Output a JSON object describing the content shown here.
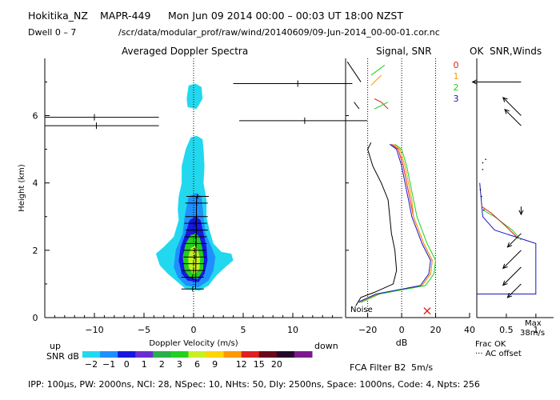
{
  "header": {
    "station": "Hokitika_NZ",
    "radar": "MAPR-449",
    "datetime": "Mon Jun 09 2014 00:00 – 00:03 UT 18:00 NZST",
    "dwell": "Dwell  0 –  7",
    "path": "/scr/data/modular_prof/raw/wind/20140609/09-Jun-2014_00-00-01.cor.nc"
  },
  "panels": {
    "spectra_title": "Averaged Doppler Spectra",
    "signal_title": "Signal, SNR",
    "ok_title": "OK",
    "snrwinds_title": "SNR,Winds"
  },
  "labels": {
    "up": "up",
    "down": "down",
    "snr_db": "SNR dB",
    "noise": "Noise",
    "fca": "FCA Filter B2",
    "fca_speed": "5m/s",
    "frac_ok": "Frac OK",
    "ac_offset": "··· AC offset",
    "max": "Max",
    "max_speed": "38m/s"
  },
  "footer": {
    "params": "IPP: 100µs,  PW: 2000ns,  NCI:  28,  NSpec: 10,  NHts: 50,  Dly: 2500ns,  Space: 1000ns,  Code: 4,  Npts: 256"
  },
  "chart_data": [
    {
      "type": "heatmap",
      "title": "Averaged Doppler Spectra",
      "xlabel": "Doppler Velocity (m/s)",
      "ylabel": "Height (km)",
      "xlim": [
        -15,
        15
      ],
      "ylim": [
        0,
        7.7
      ],
      "xticks": [
        -10,
        -5,
        0,
        5,
        10
      ],
      "yticks": [
        0,
        2,
        4,
        6
      ],
      "colorbar": {
        "label": "SNR dB",
        "ticks": [
          "-2",
          "-1",
          "0",
          "1",
          "2",
          "3",
          "6",
          "9",
          "12",
          "15",
          "20"
        ],
        "colors": [
          "#22d8ee",
          "#1e90ff",
          "#1818e0",
          "#6a2fd0",
          "#2ab04a",
          "#22d020",
          "#c8f020",
          "#ffd400",
          "#ff9800",
          "#e02020",
          "#6a0818",
          "#24082c",
          "#7a1a8c"
        ]
      },
      "contours": [
        {
          "level": 0,
          "points": [
            [
              0.6,
              0.8
            ],
            [
              1.5,
              0.95
            ],
            [
              2.3,
              1.25
            ],
            [
              3.2,
              1.5
            ],
            [
              4.0,
              1.7
            ],
            [
              3.8,
              1.9
            ],
            [
              2.8,
              1.95
            ],
            [
              2.0,
              2.2
            ],
            [
              1.6,
              2.6
            ],
            [
              1.3,
              3.0
            ],
            [
              1.3,
              3.5
            ],
            [
              1.0,
              4.0
            ],
            [
              1.1,
              4.5
            ],
            [
              1.0,
              5.0
            ],
            [
              0.9,
              5.3
            ],
            [
              0.3,
              5.4
            ],
            [
              -0.3,
              5.35
            ],
            [
              -0.8,
              5.0
            ],
            [
              -1.2,
              4.5
            ],
            [
              -1.2,
              4.0
            ],
            [
              -1.5,
              3.6
            ],
            [
              -1.6,
              3.2
            ],
            [
              -1.5,
              2.9
            ],
            [
              -2.0,
              2.4
            ],
            [
              -3.0,
              2.1
            ],
            [
              -3.8,
              1.9
            ],
            [
              -3.4,
              1.55
            ],
            [
              -2.6,
              1.3
            ],
            [
              -1.6,
              1.05
            ],
            [
              -0.8,
              0.85
            ]
          ]
        },
        {
          "level": 0,
          "points": [
            [
              0.3,
              6.2
            ],
            [
              0.9,
              6.5
            ],
            [
              0.8,
              6.85
            ],
            [
              0.2,
              6.95
            ],
            [
              -0.5,
              6.9
            ],
            [
              -0.7,
              6.5
            ],
            [
              -0.6,
              6.25
            ]
          ]
        },
        {
          "level": 1,
          "points": [
            [
              0.5,
              0.9
            ],
            [
              1.5,
              1.1
            ],
            [
              2.0,
              1.4
            ],
            [
              2.2,
              1.8
            ],
            [
              1.8,
              2.1
            ],
            [
              1.2,
              2.5
            ],
            [
              1.0,
              3.0
            ],
            [
              0.8,
              3.6
            ],
            [
              0.3,
              3.7
            ],
            [
              -0.5,
              3.6
            ],
            [
              -0.9,
              3.0
            ],
            [
              -1.1,
              2.5
            ],
            [
              -1.8,
              2.0
            ],
            [
              -2.0,
              1.5
            ],
            [
              -1.6,
              1.2
            ],
            [
              -0.8,
              0.95
            ]
          ]
        },
        {
          "level": 2,
          "points": [
            [
              0.5,
              1.05
            ],
            [
              1.1,
              1.3
            ],
            [
              1.4,
              1.7
            ],
            [
              1.3,
              2.1
            ],
            [
              1.0,
              2.5
            ],
            [
              0.7,
              2.9
            ],
            [
              0.2,
              3.0
            ],
            [
              -0.4,
              2.9
            ],
            [
              -0.8,
              2.5
            ],
            [
              -1.3,
              2.1
            ],
            [
              -1.5,
              1.7
            ],
            [
              -1.2,
              1.3
            ],
            [
              -0.6,
              1.1
            ]
          ]
        },
        {
          "level": 3,
          "points": [
            [
              0.4,
              1.15
            ],
            [
              0.95,
              1.4
            ],
            [
              1.05,
              1.75
            ],
            [
              0.85,
              2.1
            ],
            [
              0.6,
              2.4
            ],
            [
              0.2,
              2.5
            ],
            [
              -0.3,
              2.45
            ],
            [
              -0.8,
              2.2
            ],
            [
              -1.1,
              1.8
            ],
            [
              -0.9,
              1.4
            ],
            [
              -0.4,
              1.2
            ]
          ]
        },
        {
          "level": 4,
          "points": [
            [
              0.2,
              1.3
            ],
            [
              0.6,
              1.45
            ],
            [
              0.65,
              1.75
            ],
            [
              0.45,
              2.0
            ],
            [
              0.1,
              2.15
            ],
            [
              -0.3,
              2.05
            ],
            [
              -0.55,
              1.8
            ],
            [
              -0.5,
              1.5
            ],
            [
              -0.2,
              1.35
            ]
          ]
        }
      ],
      "peaks": [
        [
          -0.1,
          0.85
        ],
        [
          -0.1,
          1.2
        ],
        [
          0.0,
          1.4
        ],
        [
          0.0,
          1.6
        ],
        [
          0.1,
          1.8
        ],
        [
          0.1,
          2.0
        ],
        [
          0.2,
          2.2
        ],
        [
          0.2,
          2.4
        ],
        [
          0.3,
          2.6
        ],
        [
          0.2,
          2.8
        ],
        [
          0.3,
          3.0
        ],
        [
          0.3,
          3.4
        ],
        [
          0.4,
          3.6
        ]
      ],
      "wind_bars": [
        {
          "height": 6.95,
          "x_start": 4.0,
          "x_end": 16.0,
          "mark": 10.5
        },
        {
          "height": 5.95,
          "x_start": -15.0,
          "x_end": -3.5,
          "mark": -10.0
        },
        {
          "height": 5.7,
          "x_start": -15.0,
          "x_end": -3.5,
          "mark": -9.8
        },
        {
          "height": 5.85,
          "x_start": 4.6,
          "x_end": 17.5,
          "mark": 11.2
        }
      ]
    },
    {
      "type": "line",
      "title": "Signal, SNR",
      "xlabel": "dB",
      "ylabel": "Height (km)",
      "xlim": [
        -33,
        40
      ],
      "ylim": [
        0,
        7.7
      ],
      "xticks": [
        -20,
        0,
        20,
        40
      ],
      "dotted_x": [
        -20,
        0,
        20
      ],
      "series": [
        {
          "name": "Noise",
          "color": "#000000",
          "points": [
            [
              -27,
              0.35
            ],
            [
              -24,
              0.6
            ],
            [
              -16,
              0.75
            ],
            [
              -5,
              1.0
            ],
            [
              -3,
              1.4
            ],
            [
              -4,
              2.0
            ],
            [
              -6,
              2.5
            ],
            [
              -7,
              3.0
            ],
            [
              -8,
              3.5
            ],
            [
              -12,
              4.0
            ],
            [
              -17,
              4.5
            ],
            [
              -20,
              5.0
            ],
            [
              -18,
              5.2
            ]
          ]
        },
        {
          "name": "0",
          "color": "#e02020",
          "points": [
            [
              -25,
              0.45
            ],
            [
              -14,
              0.7
            ],
            [
              12,
              0.95
            ],
            [
              17,
              1.3
            ],
            [
              18,
              1.7
            ],
            [
              13,
              2.2
            ],
            [
              10,
              2.6
            ],
            [
              7,
              3.0
            ],
            [
              5,
              3.5
            ],
            [
              3,
              4.0
            ],
            [
              1,
              4.5
            ],
            [
              -2,
              5.0
            ],
            [
              -6,
              5.15
            ]
          ]
        },
        {
          "name": "1",
          "color": "#ff9800",
          "points": [
            [
              -25,
              0.45
            ],
            [
              -14,
              0.7
            ],
            [
              12,
              0.95
            ],
            [
              17,
              1.3
            ],
            [
              18,
              1.7
            ],
            [
              13,
              2.2
            ],
            [
              10,
              2.6
            ],
            [
              7,
              3.0
            ],
            [
              6,
              3.5
            ],
            [
              4,
              4.0
            ],
            [
              2,
              4.5
            ],
            [
              -1,
              5.0
            ],
            [
              -5,
              5.15
            ]
          ]
        },
        {
          "name": "2",
          "color": "#20d020",
          "points": [
            [
              -24,
              0.45
            ],
            [
              -13,
              0.7
            ],
            [
              14,
              0.95
            ],
            [
              19,
              1.3
            ],
            [
              20,
              1.7
            ],
            [
              15,
              2.2
            ],
            [
              12,
              2.6
            ],
            [
              9,
              3.0
            ],
            [
              7,
              3.5
            ],
            [
              5,
              4.0
            ],
            [
              3,
              4.5
            ],
            [
              0,
              5.0
            ],
            [
              -4,
              5.15
            ]
          ]
        },
        {
          "name": "3",
          "color": "#1818c0",
          "points": [
            [
              -26,
              0.45
            ],
            [
              -15,
              0.7
            ],
            [
              11,
              0.95
            ],
            [
              16,
              1.3
            ],
            [
              17,
              1.7
            ],
            [
              12,
              2.2
            ],
            [
              9,
              2.6
            ],
            [
              6,
              3.0
            ],
            [
              4,
              3.5
            ],
            [
              2,
              4.0
            ],
            [
              0,
              4.5
            ],
            [
              -3,
              5.0
            ],
            [
              -7,
              5.15
            ]
          ]
        }
      ],
      "markers": [
        {
          "x": 15,
          "height": 0.2,
          "symbol": "x",
          "color": "#e02020"
        }
      ],
      "legend": [
        "0",
        "1",
        "2",
        "3"
      ]
    },
    {
      "type": "line",
      "title": "SNR,Winds",
      "xlabel": "Frac OK",
      "ylim": [
        0,
        7.7
      ],
      "xlim": [
        0,
        1.3
      ],
      "xticks": [
        0.5,
        1
      ],
      "xtick_labels": [
        "0.5",
        "1"
      ],
      "series": [
        {
          "name": "Frac OK",
          "color": "#1818c0",
          "points": [
            [
              0.0,
              0.7
            ],
            [
              1.0,
              0.7
            ],
            [
              1.0,
              2.2
            ],
            [
              0.3,
              2.6
            ],
            [
              0.1,
              3.0
            ],
            [
              0.05,
              4.0
            ]
          ]
        },
        {
          "name": "green",
          "color": "#20d020",
          "points": [
            [
              0.1,
              3.2
            ],
            [
              0.3,
              3.0
            ],
            [
              0.6,
              2.6
            ],
            [
              0.75,
              2.3
            ]
          ]
        },
        {
          "name": "red",
          "color": "#e02020",
          "points": [
            [
              0.08,
              3.3
            ],
            [
              0.25,
              3.1
            ],
            [
              0.5,
              2.7
            ],
            [
              0.7,
              2.35
            ]
          ]
        }
      ],
      "wind_barbs": [
        {
          "height": 7.0,
          "direction": "W",
          "speed_ms": 38
        },
        {
          "height": 6.0,
          "direction": "NW",
          "speed_ms": 20
        },
        {
          "height": 5.7,
          "direction": "NW",
          "speed_ms": 18
        },
        {
          "height": 3.3,
          "direction": "S",
          "speed_ms": 5
        },
        {
          "height": 2.5,
          "direction": "SW",
          "speed_ms": 15
        },
        {
          "height": 2.0,
          "direction": "SW",
          "speed_ms": 20
        },
        {
          "height": 1.5,
          "direction": "SW",
          "speed_ms": 20
        },
        {
          "height": 1.0,
          "direction": "SW",
          "speed_ms": 15
        }
      ]
    }
  ]
}
